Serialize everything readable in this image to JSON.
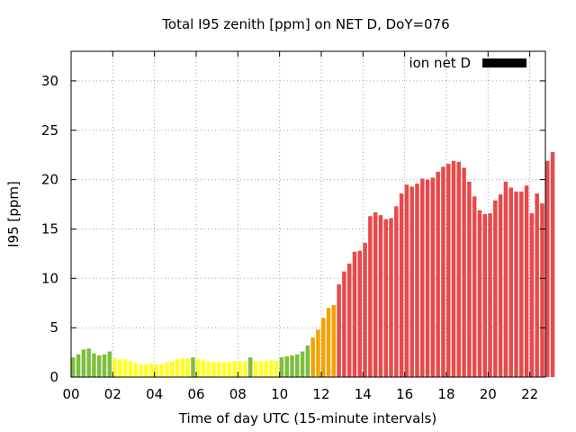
{
  "chart_data": {
    "type": "bar",
    "title": "Total I95 zenith [ppm] on NET D, DoY=076",
    "xlabel": "Time of day UTC (15-minute intervals)",
    "ylabel": "I95 [ppm]",
    "x_unit": "hours UTC",
    "interval_hours": 0.25,
    "xlim": [
      0,
      22.75
    ],
    "ylim": [
      0,
      33
    ],
    "x_ticks": [
      "00",
      "02",
      "04",
      "06",
      "08",
      "10",
      "12",
      "14",
      "16",
      "18",
      "20",
      "22"
    ],
    "x_tick_values": [
      0,
      2,
      4,
      6,
      8,
      10,
      12,
      14,
      16,
      18,
      20,
      22
    ],
    "y_ticks": [
      "0",
      "5",
      "10",
      "15",
      "20",
      "25",
      "30"
    ],
    "y_tick_values": [
      0,
      5,
      10,
      15,
      20,
      25,
      30
    ],
    "grid": true,
    "legend": {
      "label": "ion net D",
      "position": "top-right",
      "color": "#000000"
    },
    "color_scale": [
      {
        "below": 2,
        "color": "#ffff26"
      },
      {
        "below": 4,
        "color": "#7dbf3c"
      },
      {
        "below": 9,
        "color": "#f5a200"
      },
      {
        "below": 999,
        "color": "#e84a4a"
      }
    ],
    "values": [
      2.0,
      2.3,
      2.8,
      2.9,
      2.4,
      2.2,
      2.3,
      2.6,
      1.9,
      1.8,
      1.8,
      1.6,
      1.4,
      1.3,
      1.3,
      1.4,
      1.3,
      1.3,
      1.5,
      1.6,
      1.8,
      1.9,
      1.9,
      2.0,
      1.8,
      1.7,
      1.6,
      1.5,
      1.5,
      1.5,
      1.5,
      1.6,
      1.6,
      1.6,
      2.0,
      1.6,
      1.6,
      1.6,
      1.7,
      1.6,
      2.0,
      2.1,
      2.2,
      2.3,
      2.6,
      3.2,
      4.0,
      4.8,
      6.0,
      7.0,
      7.3,
      9.4,
      10.7,
      11.5,
      12.7,
      12.8,
      13.6,
      16.3,
      16.7,
      16.4,
      16.0,
      16.1,
      17.3,
      18.6,
      19.5,
      19.3,
      19.6,
      20.1,
      20.0,
      20.2,
      20.8,
      21.3,
      21.6,
      21.9,
      21.8,
      21.2,
      19.8,
      18.3,
      16.9,
      16.5,
      16.6,
      17.9,
      18.5,
      19.8,
      19.2,
      18.8,
      18.8,
      19.4,
      16.6,
      18.6,
      17.6,
      21.9,
      22.8
    ]
  }
}
